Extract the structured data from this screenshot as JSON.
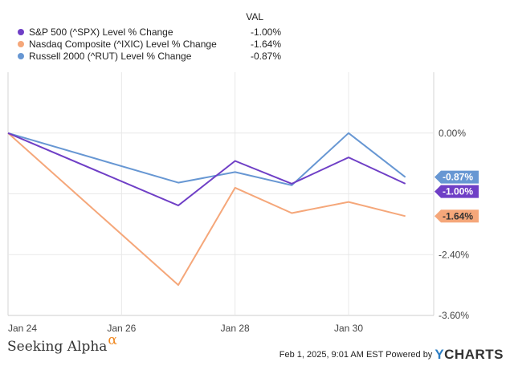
{
  "legend": {
    "header": "VAL",
    "items": [
      {
        "name": "S&P 500 (^SPX) Level % Change",
        "value": "-1.00%",
        "color": "#6f3fc6"
      },
      {
        "name": "Nasdaq Composite (^IXIC) Level % Change",
        "value": "-1.64%",
        "color": "#f5a77a"
      },
      {
        "name": "Russell 2000 (^RUT) Level % Change",
        "value": "-0.87%",
        "color": "#6797d3"
      }
    ]
  },
  "footer": {
    "brand": "Seeking Alpha",
    "brand_mark": "α",
    "timestamp": "Feb 1, 2025, 9:01 AM EST Powered by",
    "powered_brand_y": "Y",
    "powered_brand_rest": "CHARTS"
  },
  "chart_data": {
    "type": "line",
    "x": [
      0,
      1,
      2,
      3,
      4,
      5,
      6,
      7
    ],
    "xlim": [
      0,
      7.5
    ],
    "xticks": [
      {
        "pos": 0,
        "label": "Jan 24"
      },
      {
        "pos": 2,
        "label": "Jan 26"
      },
      {
        "pos": 4,
        "label": "Jan 28"
      },
      {
        "pos": 6,
        "label": "Jan 30"
      }
    ],
    "ylim": [
      -3.6,
      1.2
    ],
    "yticks": [
      {
        "value": 0.0,
        "label": "0.00%"
      },
      {
        "value": -1.2,
        "label": ""
      },
      {
        "value": -2.4,
        "label": "-2.40%"
      },
      {
        "value": -3.6,
        "label": "-3.60%"
      }
    ],
    "series": [
      {
        "name": "Russell 2000 (^RUT) Level % Change",
        "color": "#6797d3",
        "values": [
          0.0,
          null,
          -0.98,
          -0.77,
          -1.03,
          0.0,
          -0.87
        ],
        "x": [
          0,
          2,
          3,
          4,
          5,
          6,
          7
        ],
        "end_label": "-0.87%"
      },
      {
        "name": "Nasdaq Composite (^IXIC) Level % Change",
        "color": "#f5a77a",
        "values": [
          0.0,
          -3.0,
          -1.08,
          -1.58,
          -1.36,
          -1.64
        ],
        "x": [
          0,
          3,
          4,
          5,
          6,
          7
        ],
        "end_label": "-1.64%"
      },
      {
        "name": "S&P 500 (^SPX) Level % Change",
        "color": "#6f3fc6",
        "values": [
          0.0,
          -1.43,
          -0.55,
          -1.0,
          -0.48,
          -1.0
        ],
        "x": [
          0,
          3,
          4,
          5,
          6,
          7
        ],
        "end_label": "-1.00%"
      }
    ]
  }
}
